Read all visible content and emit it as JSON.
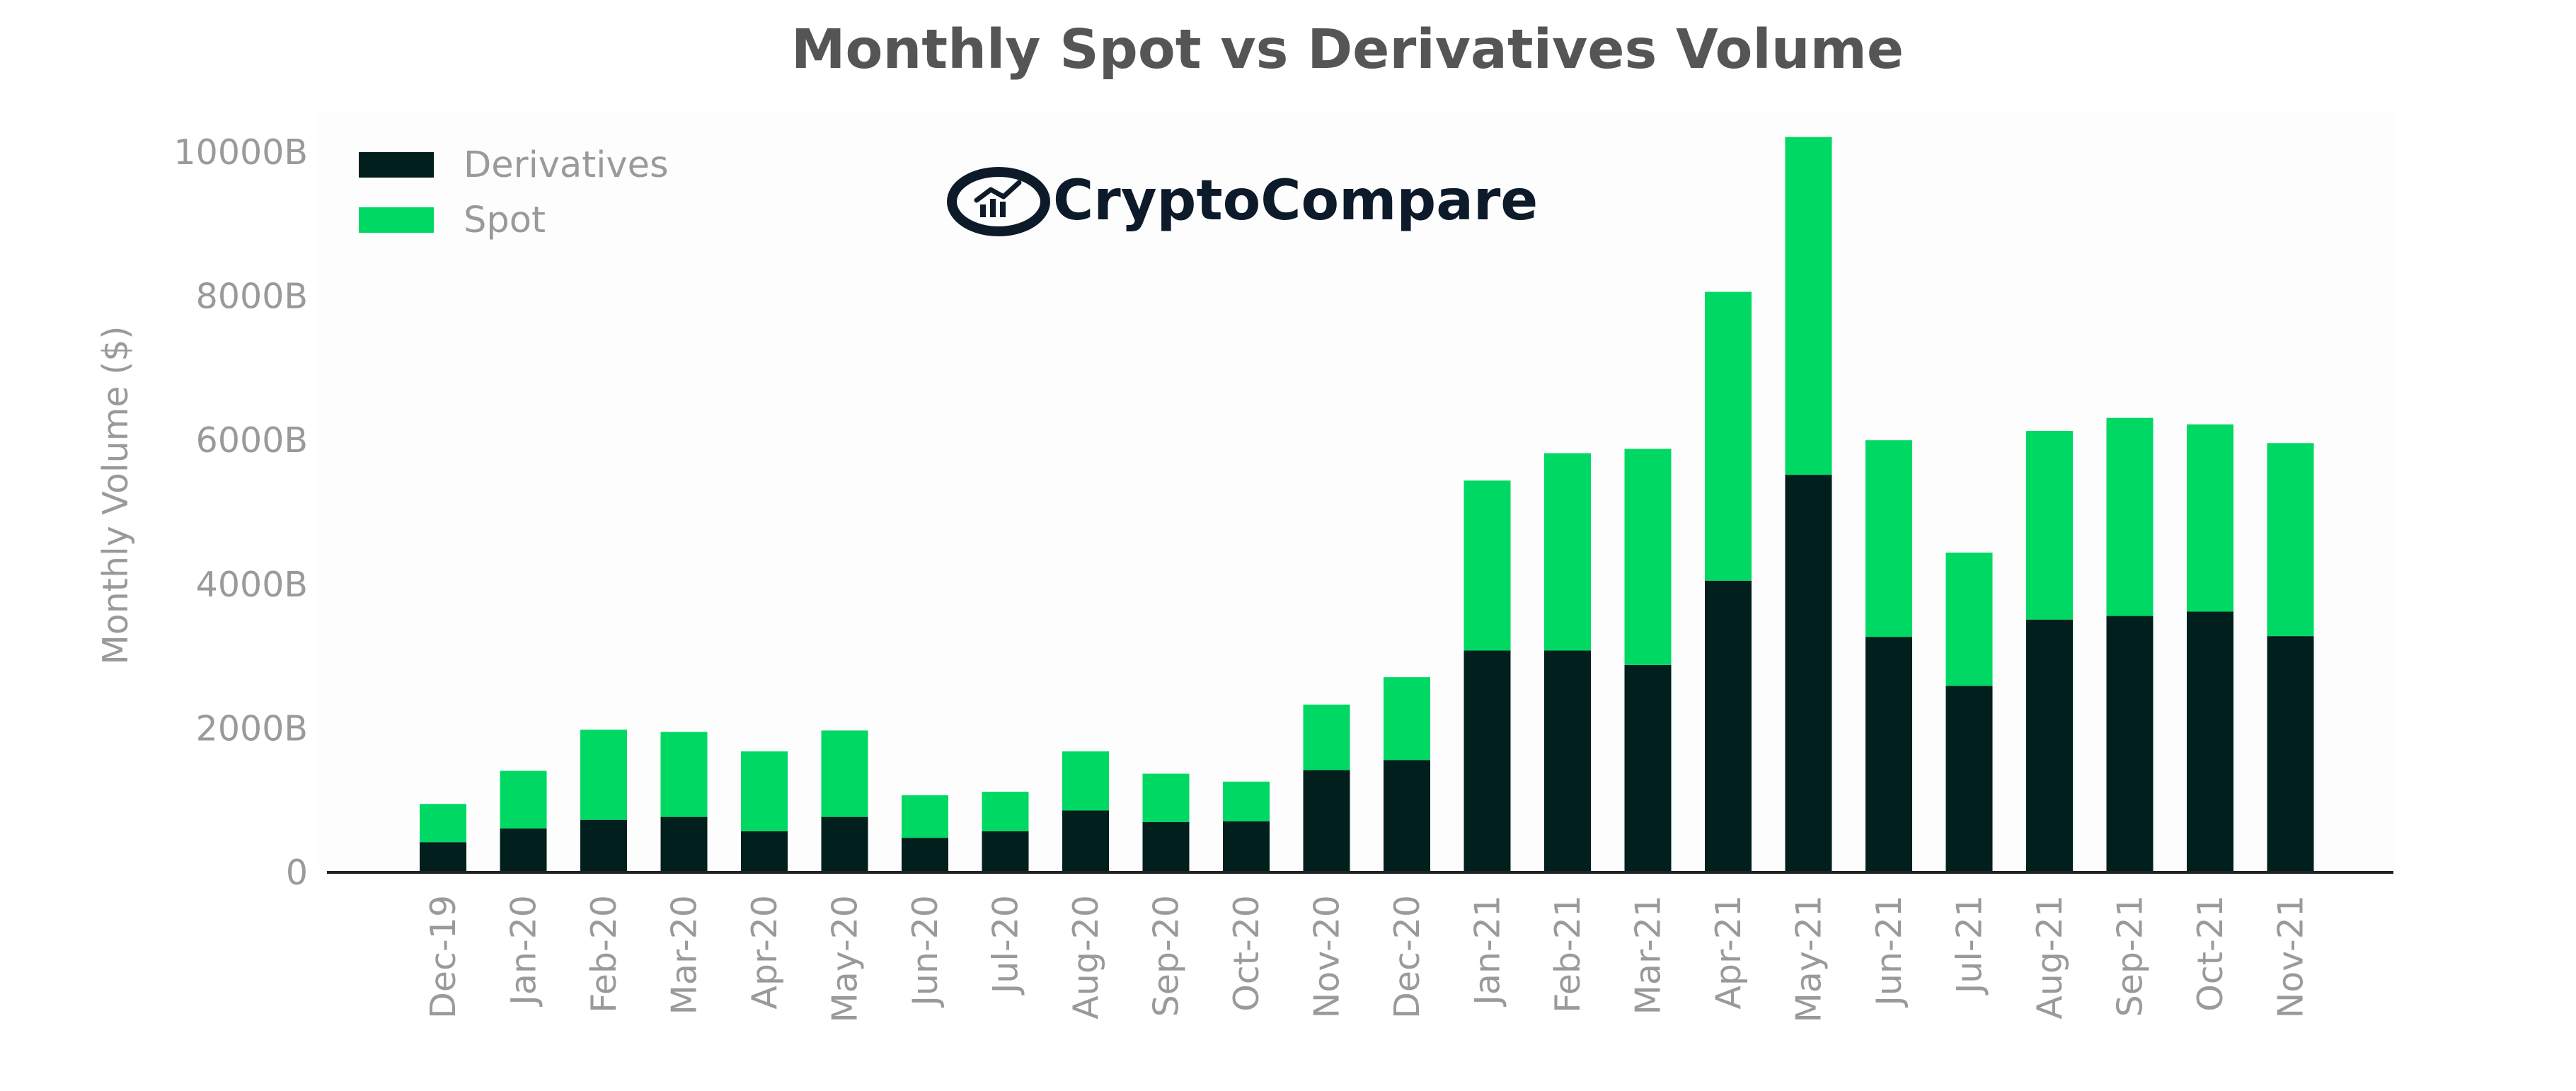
{
  "brand": {
    "name": "CryptoCompare",
    "color": "#0c1a2a",
    "icon": "chart-circle-logo"
  },
  "chart_data": {
    "type": "bar",
    "stacked": true,
    "title": "Monthly Spot vs Derivatives Volume",
    "xlabel": "",
    "ylabel": "Monthly Volume ($)",
    "ylim": [
      0,
      10000
    ],
    "yticks": [
      {
        "value": 0,
        "label": "0"
      },
      {
        "value": 2000,
        "label": "2000B"
      },
      {
        "value": 4000,
        "label": "4000B"
      },
      {
        "value": 6000,
        "label": "6000B"
      },
      {
        "value": 8000,
        "label": "8000B"
      },
      {
        "value": 10000,
        "label": "10000B"
      }
    ],
    "grid": false,
    "legend_position": "top-left",
    "categories": [
      "Dec-19",
      "Jan-20",
      "Feb-20",
      "Mar-20",
      "Apr-20",
      "May-20",
      "Jun-20",
      "Jul-20",
      "Aug-20",
      "Sep-20",
      "Oct-20",
      "Nov-20",
      "Dec-20",
      "Jan-21",
      "Feb-21",
      "Mar-21",
      "Apr-21",
      "May-21",
      "Jun-21",
      "Jul-21",
      "Aug-21",
      "Sep-21",
      "Oct-21",
      "Nov-21"
    ],
    "series": [
      {
        "name": "Derivatives",
        "color": "#011f1c",
        "values": [
          420,
          610,
          730,
          770,
          570,
          770,
          480,
          570,
          860,
          700,
          710,
          1420,
          1560,
          3080,
          3080,
          2880,
          4050,
          5520,
          3270,
          2590,
          3510,
          3560,
          3620,
          3280
        ]
      },
      {
        "name": "Spot",
        "color": "#00d864",
        "values": [
          530,
          800,
          1250,
          1180,
          1110,
          1200,
          590,
          550,
          820,
          670,
          550,
          910,
          1150,
          2360,
          2740,
          3000,
          4010,
          4690,
          2730,
          1850,
          2620,
          2750,
          2600,
          2680
        ]
      }
    ]
  }
}
